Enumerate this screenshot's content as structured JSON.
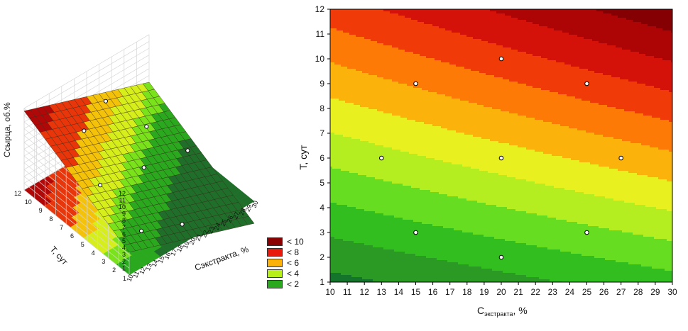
{
  "legend": {
    "items": [
      {
        "label": "< 10",
        "color": "#8b0000"
      },
      {
        "label": "< 8",
        "color": "#e81a0c"
      },
      {
        "label": "< 6",
        "color": "#fbb20a"
      },
      {
        "label": "< 4",
        "color": "#b6f018"
      },
      {
        "label": "< 2",
        "color": "#2aa81e"
      }
    ]
  },
  "chart_data": [
    {
      "type": "surface3d",
      "zlabel": "Cсырца, об.%",
      "ylabel": "T, сут",
      "xlabel": "Cэкстракта, %",
      "zticks": [
        "1",
        "2",
        "3",
        "4",
        "5",
        "6",
        "7",
        "8",
        "9",
        "10",
        "11",
        "12"
      ],
      "yticks": [
        "12",
        "10",
        "9",
        "8",
        "7",
        "6",
        "5",
        "4",
        "3",
        "2",
        "1"
      ],
      "xticks": [
        "10",
        "11",
        "12",
        "13",
        "14",
        "15",
        "16",
        "17",
        "18",
        "19",
        "20",
        "21",
        "22",
        "23",
        "24",
        "25",
        "26",
        "27",
        "28",
        "29",
        "30"
      ],
      "points": [
        {
          "x": 15,
          "y": 9,
          "z": 9.4
        },
        {
          "x": 20,
          "y": 10,
          "z": 9.9
        },
        {
          "x": 13,
          "y": 6,
          "z": 5.9
        },
        {
          "x": 20,
          "y": 6,
          "z": 4.7
        },
        {
          "x": 27,
          "y": 6,
          "z": 3.4
        },
        {
          "x": 15,
          "y": 3,
          "z": 1.5
        },
        {
          "x": 20,
          "y": 2,
          "z": 0.9
        },
        {
          "x": 25,
          "y": 9,
          "z": 4.6
        }
      ]
    },
    {
      "type": "contour",
      "xlabel_main": "C",
      "xlabel_sub": "экстракта",
      "xlabel_suffix": ", %",
      "ylabel": "T, сут",
      "xlim": [
        10,
        30
      ],
      "ylim": [
        1,
        12
      ],
      "xticks": [
        "10",
        "11",
        "12",
        "13",
        "14",
        "15",
        "16",
        "17",
        "18",
        "19",
        "20",
        "21",
        "22",
        "23",
        "24",
        "25",
        "26",
        "27",
        "28",
        "29",
        "30"
      ],
      "yticks": [
        "1",
        "2",
        "3",
        "4",
        "5",
        "6",
        "7",
        "8",
        "9",
        "10",
        "11",
        "12"
      ],
      "levels": [
        1,
        2,
        3,
        4,
        5,
        6,
        7,
        8,
        9,
        10,
        11
      ],
      "level_colors": [
        "#14742c",
        "#2a9a24",
        "#33be20",
        "#66dd20",
        "#b4ee20",
        "#e8f020",
        "#fbb20a",
        "#fd7a06",
        "#f03a08",
        "#d4120a",
        "#ad0506",
        "#840002"
      ],
      "points": [
        {
          "x": 15,
          "y": 9
        },
        {
          "x": 20,
          "y": 10
        },
        {
          "x": 25,
          "y": 9
        },
        {
          "x": 13,
          "y": 6
        },
        {
          "x": 20,
          "y": 6
        },
        {
          "x": 27,
          "y": 6
        },
        {
          "x": 15,
          "y": 3
        },
        {
          "x": 25,
          "y": 3
        },
        {
          "x": 20,
          "y": 2
        }
      ]
    }
  ]
}
